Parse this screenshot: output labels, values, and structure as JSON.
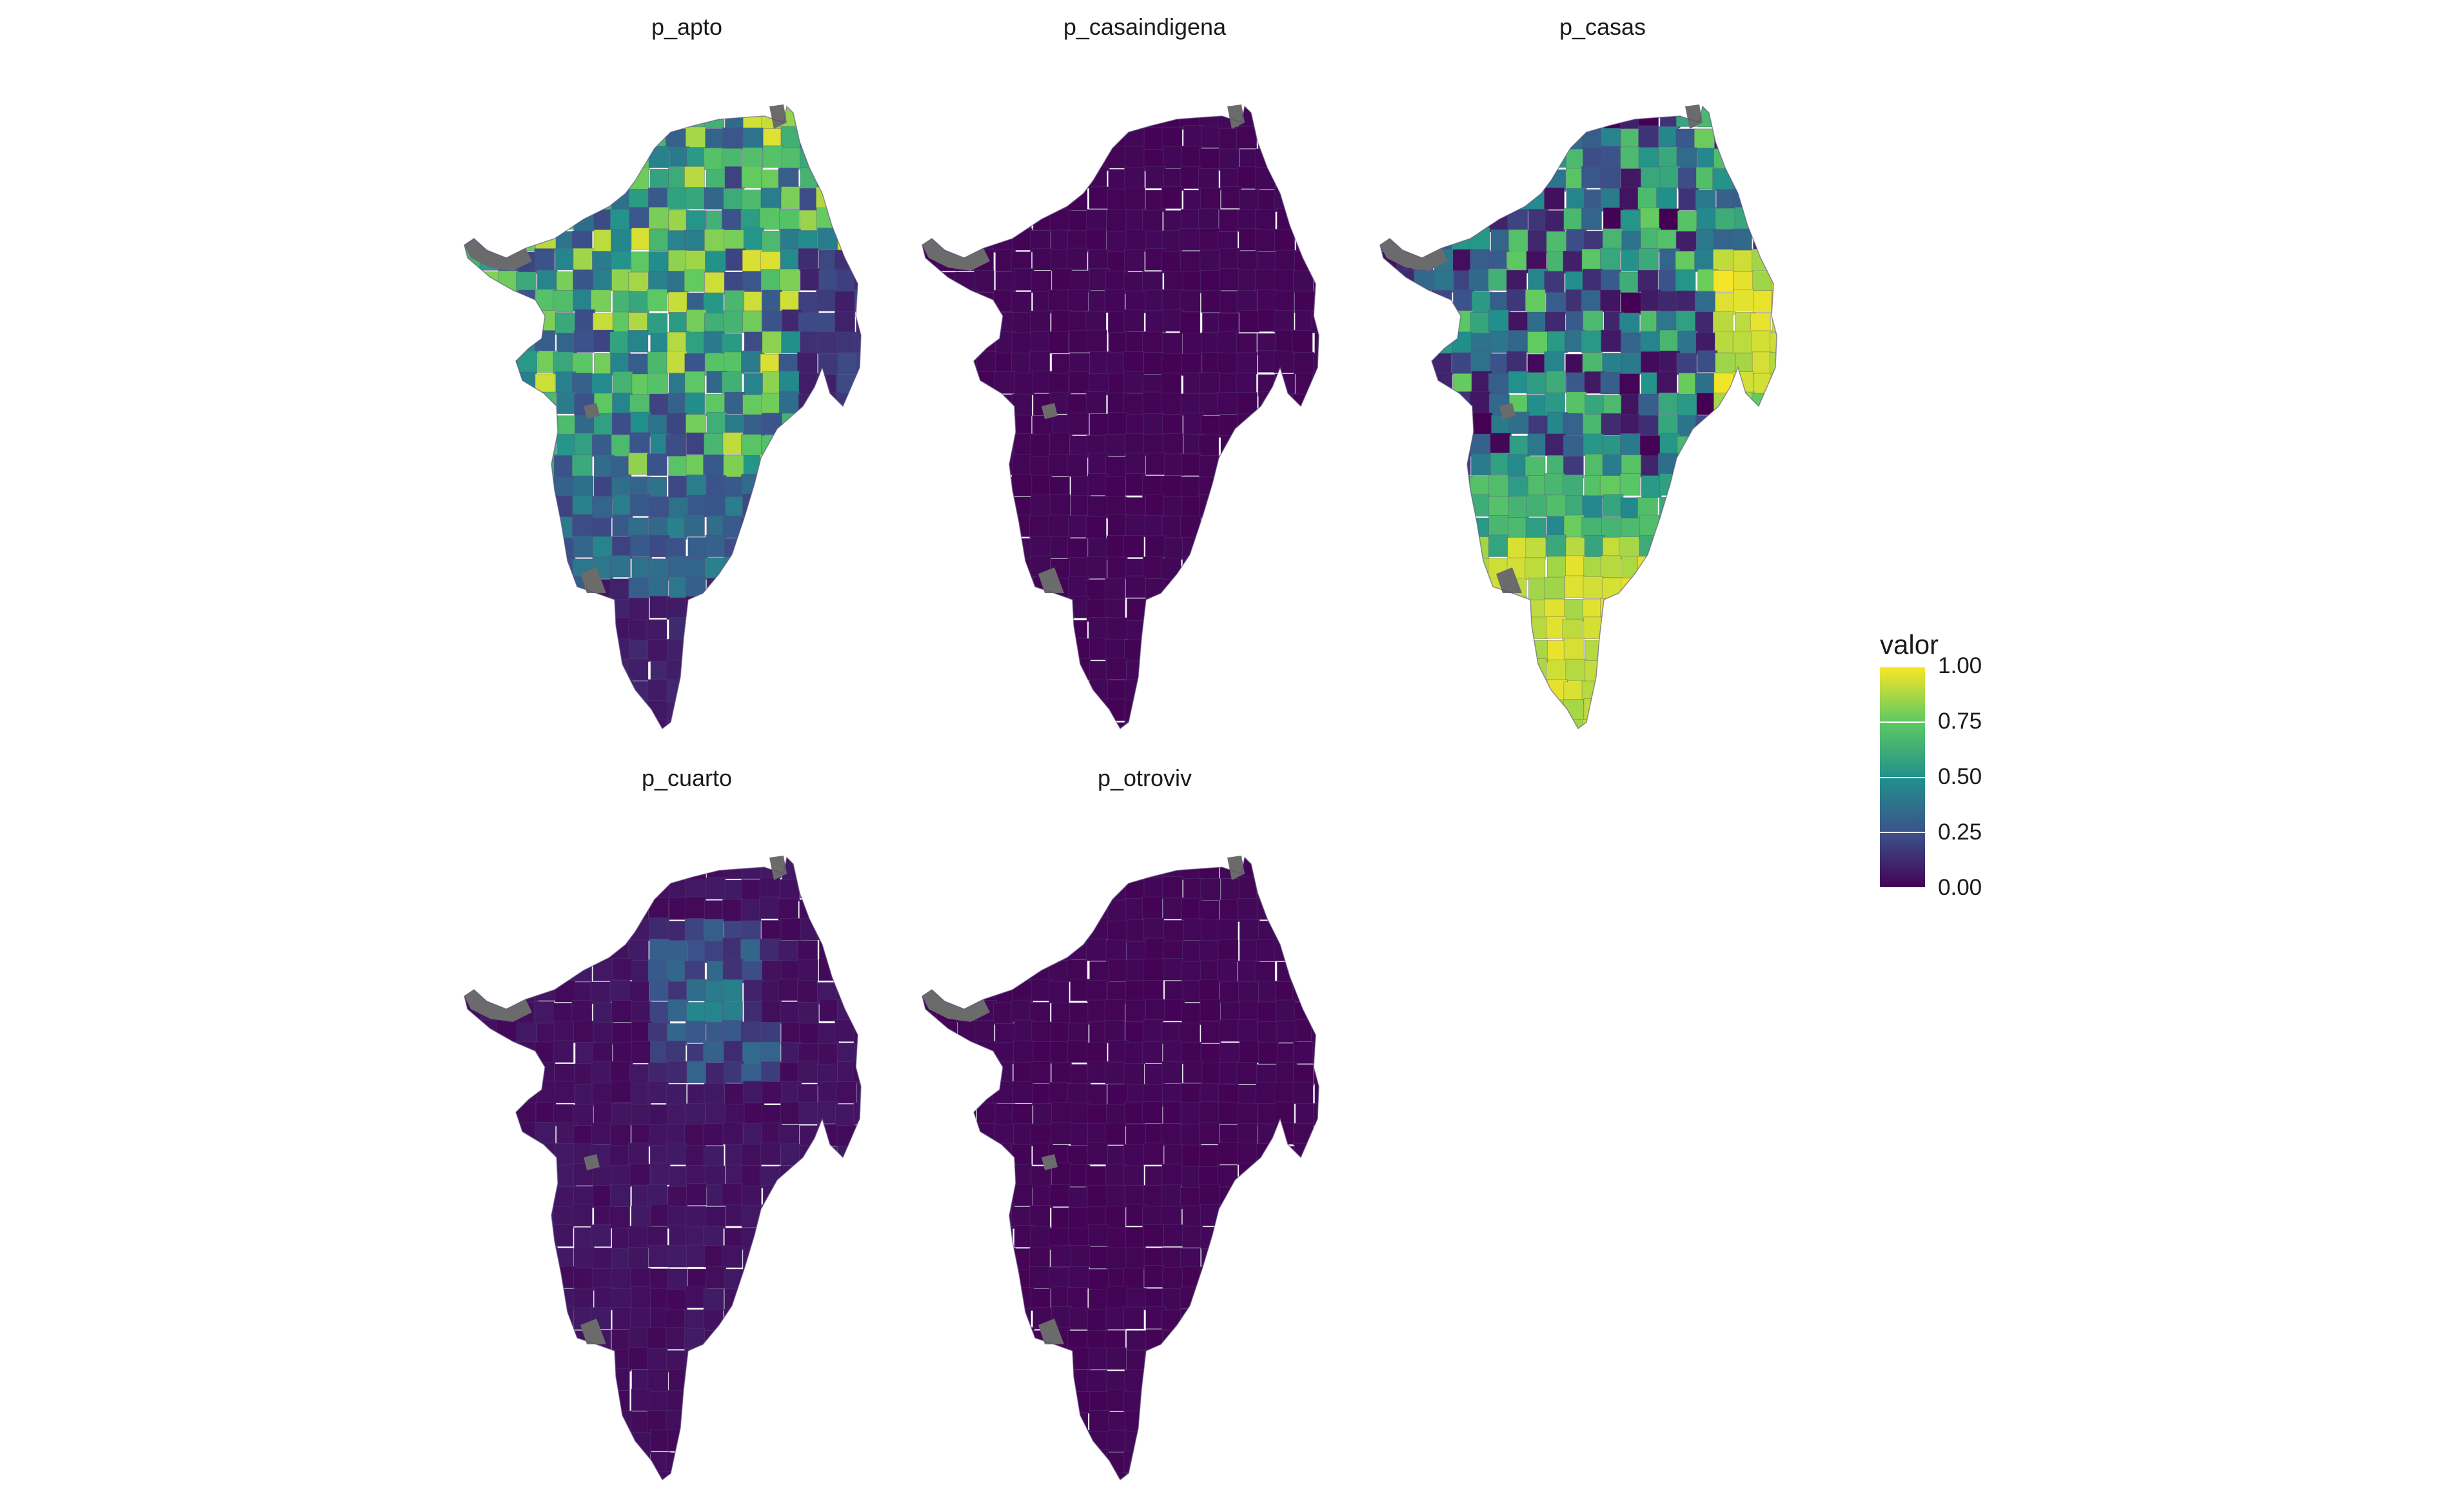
{
  "panels": [
    {
      "title": "p_apto",
      "pattern": "apto"
    },
    {
      "title": "p_casaindigena",
      "pattern": "uniform-low"
    },
    {
      "title": "p_casas",
      "pattern": "casas"
    },
    {
      "title": "p_cuarto",
      "pattern": "cuarto"
    },
    {
      "title": "p_otroviv",
      "pattern": "uniform-low"
    }
  ],
  "legend": {
    "title": "valor",
    "ticks": [
      "1.00",
      "0.75",
      "0.50",
      "0.25",
      "0.00"
    ],
    "tick_values": [
      1.0,
      0.75,
      0.5,
      0.25,
      0.0
    ],
    "range": [
      0,
      1
    ],
    "palette": [
      "#440154",
      "#3b528b",
      "#21918c",
      "#5ec962",
      "#fde725"
    ]
  },
  "colors": {
    "missing": "#6b6b6b",
    "border": "#5a4a7a",
    "background": "#ffffff"
  }
}
